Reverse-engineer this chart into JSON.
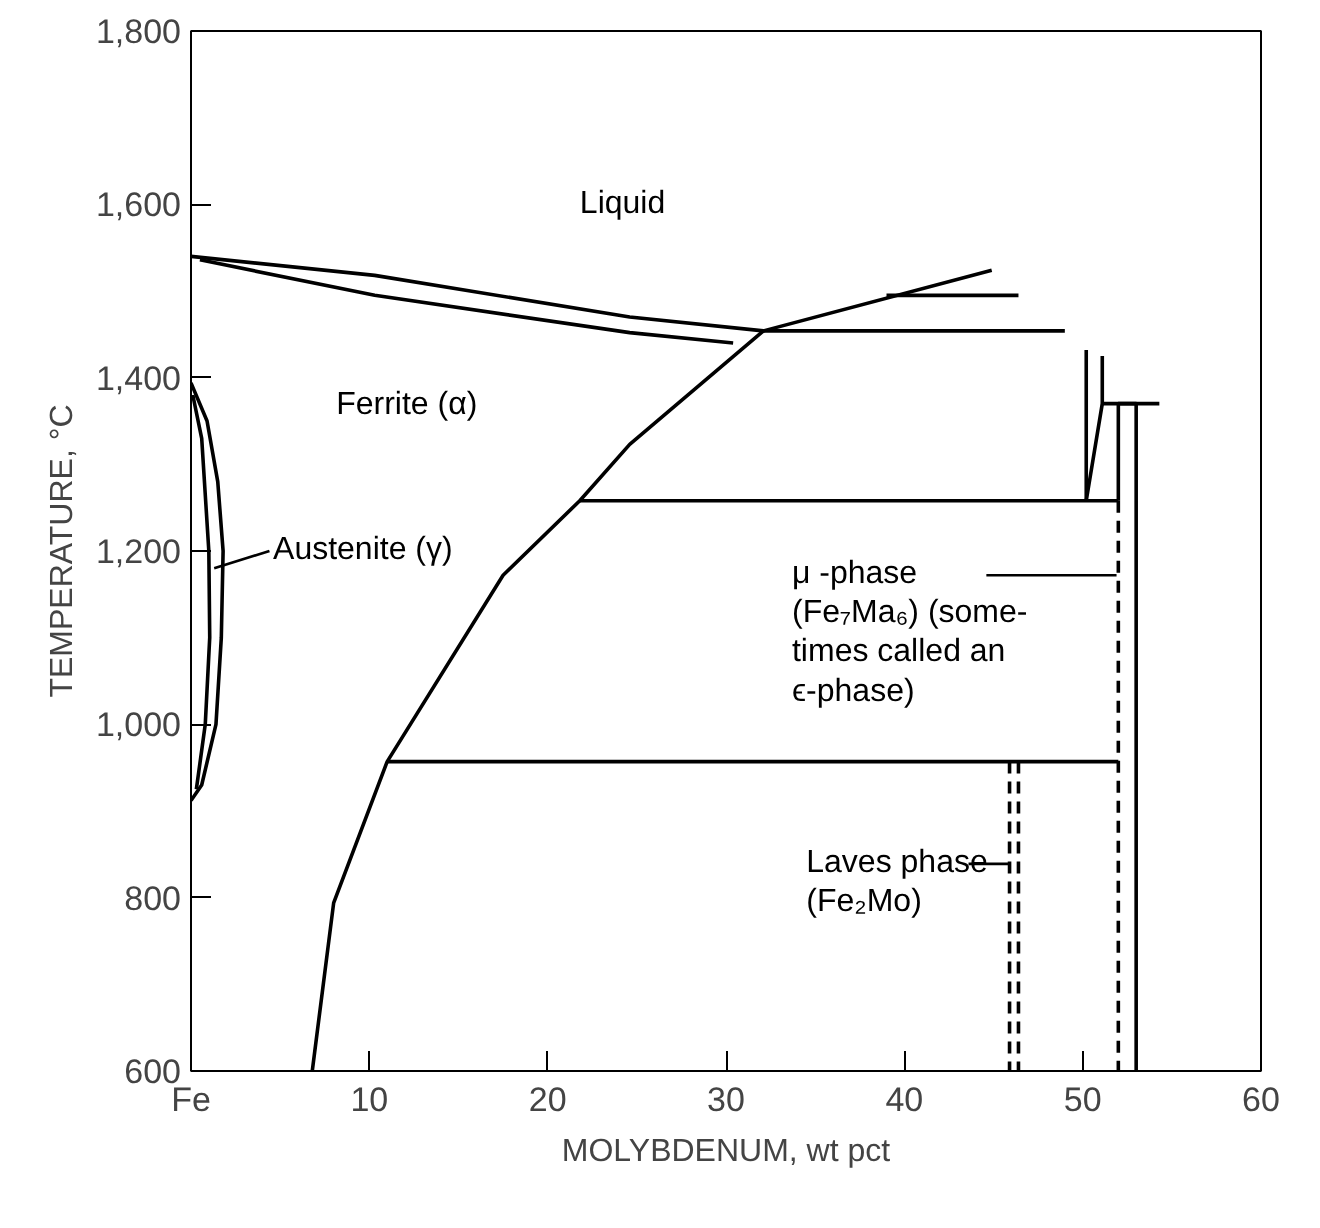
{
  "chart_data": {
    "type": "line",
    "xlabel": "MOLYBDENUM, wt pct",
    "ylabel": "TEMPERATURE, °C",
    "xlim": [
      0,
      60
    ],
    "ylim": [
      600,
      1800
    ],
    "xticks": [
      {
        "value": 0,
        "label": "Fe"
      },
      10,
      20,
      30,
      40,
      50,
      60
    ],
    "yticks": [
      600,
      800,
      {
        "value": 1000,
        "label": "1,000"
      },
      {
        "value": 1200,
        "label": "1,200"
      },
      {
        "value": 1400,
        "label": "1,400"
      },
      {
        "value": 1600,
        "label": "1,600"
      },
      {
        "value": 1800,
        "label": "1,800"
      }
    ],
    "grid": false,
    "marker": "none",
    "line_style": "solid",
    "series": [
      {
        "color": "#000000",
        "x": [
          0,
          10.3,
          24.6,
          32.1,
          44.9
        ],
        "values": [
          1540,
          1518,
          1470,
          1454,
          1524
        ]
      },
      {
        "color": "#000000",
        "x": [
          0.5,
          10.3,
          24.6,
          30.4
        ],
        "values": [
          1536,
          1495,
          1452,
          1440
        ]
      },
      {
        "color": "#000000",
        "x": [
          32.1,
          49.0
        ],
        "values": [
          1454,
          1454
        ]
      },
      {
        "color": "#000000",
        "x": [
          39.0,
          46.4
        ],
        "values": [
          1495,
          1495
        ]
      },
      {
        "color": "#000000",
        "x": [
          32.1,
          24.6,
          21.8,
          17.5,
          11.0,
          8.0,
          6.8
        ],
        "values": [
          1454,
          1323,
          1258,
          1172,
          957,
          794,
          600
        ]
      },
      {
        "color": "#000000",
        "x": [
          21.8,
          52.0
        ],
        "values": [
          1258,
          1258
        ]
      },
      {
        "color": "#000000",
        "x": [
          11.0,
          52.0
        ],
        "values": [
          957,
          957
        ]
      },
      {
        "color": "#000000",
        "x": [
          50.2,
          50.2
        ],
        "values": [
          1432,
          1258
        ]
      },
      {
        "color": "#000000",
        "x": [
          51.1,
          51.1,
          50.2
        ],
        "values": [
          1425,
          1370,
          1258
        ]
      },
      {
        "color": "#000000",
        "x": [
          51.1,
          54.3
        ],
        "values": [
          1370,
          1370
        ]
      },
      {
        "color": "#000000",
        "x": [
          52.0,
          52.0,
          53.0,
          53.0
        ],
        "values": [
          1258,
          1370,
          1370,
          600
        ]
      },
      {
        "color": "#000000",
        "line_style": "dashed",
        "x": [
          52.0,
          52.0
        ],
        "values": [
          1258,
          600
        ]
      },
      {
        "color": "#000000",
        "line_style": "dashed",
        "x": [
          45.9,
          45.9
        ],
        "values": [
          957,
          600
        ]
      },
      {
        "color": "#000000",
        "line_style": "dashed",
        "x": [
          46.4,
          46.4
        ],
        "values": [
          957,
          600
        ]
      },
      {
        "color": "#000000",
        "x": [
          0,
          0.9,
          1.5,
          1.8,
          1.7,
          1.4,
          0.6,
          0
        ],
        "values": [
          1394,
          1350,
          1280,
          1200,
          1100,
          1000,
          930,
          912
        ]
      },
      {
        "color": "#000000",
        "x": [
          0.1,
          0.6,
          1.0,
          1.05,
          0.8,
          0.3
        ],
        "values": [
          1380,
          1330,
          1200,
          1100,
          1000,
          925
        ]
      }
    ],
    "annotations": [
      "Liquid",
      "Ferrite (α)",
      {
        "text": "Austenite (γ)",
        "x": 1.3,
        "y": 1180
      },
      {
        "text": "μ -phase\n(Fe₇Ma₆) (some-\ntimes called an\nϵ-phase)",
        "x": 51.9,
        "y": 1172
      },
      {
        "text": "Laves phase\n(Fe₂Mo)",
        "x": 45.9,
        "y": 839
      }
    ]
  }
}
